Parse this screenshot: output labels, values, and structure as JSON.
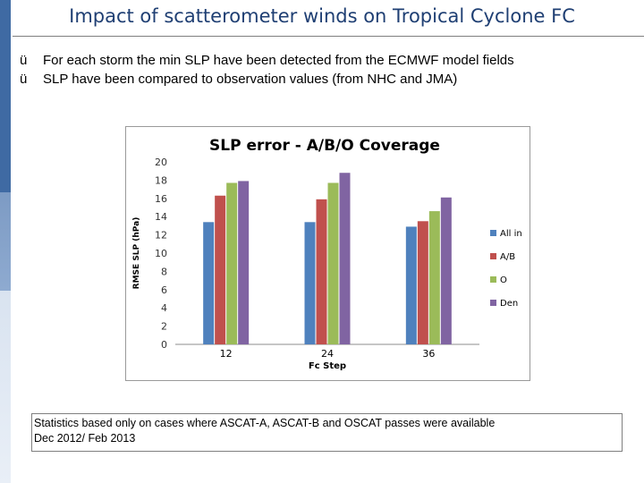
{
  "slide": {
    "title": "Impact of scatterometer winds on Tropical Cyclone FC",
    "bullet_icon": "checkmark-icon",
    "bullets": [
      {
        "mark": "ü",
        "text": "For each storm the min SLP have been detected from the ECMWF model fields"
      },
      {
        "mark": "ü",
        "text": "SLP have been compared to observation values (from NHC and JMA)"
      }
    ],
    "note": {
      "line1": "Statistics based only on cases where ASCAT-A, ASCAT-B and OSCAT  passes were available",
      "line2": " Dec 2012/ Feb 2013"
    }
  },
  "chart_data": {
    "type": "bar",
    "title": "SLP error - A/B/O Coverage",
    "xlabel": "Fc Step",
    "ylabel": "RMSE SLP (hPa)",
    "categories": [
      "12",
      "24",
      "36"
    ],
    "ylim": [
      0,
      20
    ],
    "yticks": [
      "0",
      "2",
      "4",
      "6",
      "8",
      "10",
      "12",
      "14",
      "16",
      "18",
      "20"
    ],
    "grid": false,
    "legend_position": "right",
    "series": [
      {
        "name": "All in",
        "color": "#4f81bd",
        "values": [
          13.4,
          13.4,
          12.9
        ]
      },
      {
        "name": "A/B",
        "color": "#c0504d",
        "values": [
          16.3,
          15.9,
          13.5
        ]
      },
      {
        "name": "O",
        "color": "#9bbb59",
        "values": [
          17.7,
          17.7,
          14.6
        ]
      },
      {
        "name": "Den",
        "color": "#8064a2",
        "values": [
          17.9,
          18.8,
          16.1
        ]
      }
    ]
  }
}
